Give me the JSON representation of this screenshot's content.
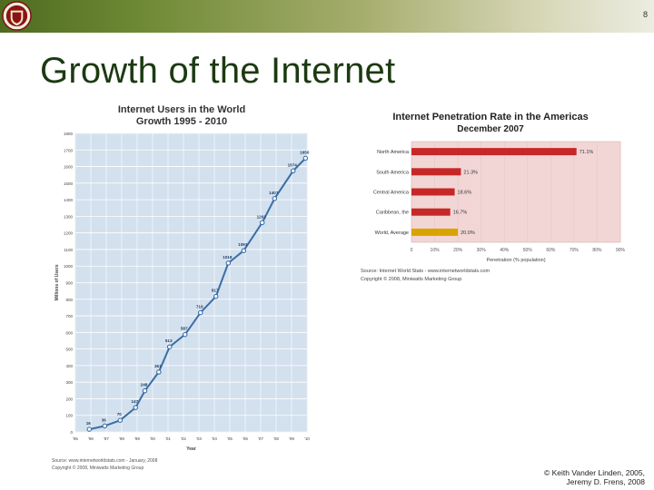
{
  "slide": {
    "number": "8",
    "title": "Growth of the Internet",
    "credit_line1": "© Keith Vander Linden, 2005,",
    "credit_line2": "Jeremy D. Frens, 2008"
  },
  "chart_data": [
    {
      "type": "line",
      "title": "Internet Users in the World",
      "subtitle": "Growth 1995 - 2010",
      "xlabel": "Year",
      "ylabel": "Millions of Users",
      "ylim": [
        0,
        1800
      ],
      "yticks": [
        0,
        100,
        200,
        300,
        400,
        500,
        600,
        700,
        800,
        900,
        1000,
        1100,
        1200,
        1300,
        1400,
        1500,
        1600,
        1700,
        1800
      ],
      "xticks": [
        "'95",
        "'96",
        "'97",
        "'98",
        "'99",
        "'00",
        "'01",
        "'02",
        "'03",
        "'04",
        "'05",
        "'06",
        "'07",
        "'08",
        "'09",
        "'10"
      ],
      "grid": true,
      "points": [
        {
          "x": 1995.9,
          "y": 16,
          "label": "16"
        },
        {
          "x": 1996.9,
          "y": 36,
          "label": "36"
        },
        {
          "x": 1997.9,
          "y": 70,
          "label": "70"
        },
        {
          "x": 1998.9,
          "y": 147,
          "label": "147"
        },
        {
          "x": 1999.5,
          "y": 248,
          "label": "248"
        },
        {
          "x": 2000.4,
          "y": 361,
          "label": "361"
        },
        {
          "x": 2001.1,
          "y": 513,
          "label": "513"
        },
        {
          "x": 2002.1,
          "y": 587,
          "label": "587"
        },
        {
          "x": 2003.1,
          "y": 719,
          "label": "719"
        },
        {
          "x": 2004.1,
          "y": 817,
          "label": "817"
        },
        {
          "x": 2004.9,
          "y": 1018,
          "label": "1018"
        },
        {
          "x": 2005.9,
          "y": 1093,
          "label": "1093"
        },
        {
          "x": 2007.1,
          "y": 1262,
          "label": "1262"
        },
        {
          "x": 2007.9,
          "y": 1407,
          "label": "1407"
        },
        {
          "x": 2009.1,
          "y": 1574,
          "label": "1574"
        },
        {
          "x": 2009.9,
          "y": 1650,
          "label": "1650"
        }
      ],
      "source_line1": "Source: www.internetworldstats.com - January, 2008",
      "source_line2": "Copyright © 2008, Miniwatts Marketing Group",
      "colors": {
        "line": "#3a6ea5",
        "background": "#d3e0ee"
      }
    },
    {
      "type": "bar",
      "orientation": "horizontal",
      "title": "Internet Penetration Rate in the Americas",
      "subtitle": "December 2007",
      "xlabel": "Penetration (% population)",
      "xlim": [
        0,
        90
      ],
      "xticks": [
        "0",
        "10%",
        "20%",
        "30%",
        "40%",
        "50%",
        "60%",
        "70%",
        "80%",
        "90%"
      ],
      "categories": [
        "North America",
        "South America",
        "Central America",
        "Caribbean, the",
        "World, Average"
      ],
      "values": [
        71.1,
        21.3,
        18.6,
        16.7,
        20.0
      ],
      "labels": [
        "71.1%",
        "21.3%",
        "18.6%",
        "16.7%",
        "20.0%"
      ],
      "source_line1": "Source: Internet World Stats - www.internetworldstats.com",
      "source_line2": "Copyright © 2008, Miniwatts Marketing Group",
      "colors": {
        "bar": "#c62828",
        "average_bar": "#d9a400",
        "background": "#f2d6d6"
      }
    }
  ]
}
